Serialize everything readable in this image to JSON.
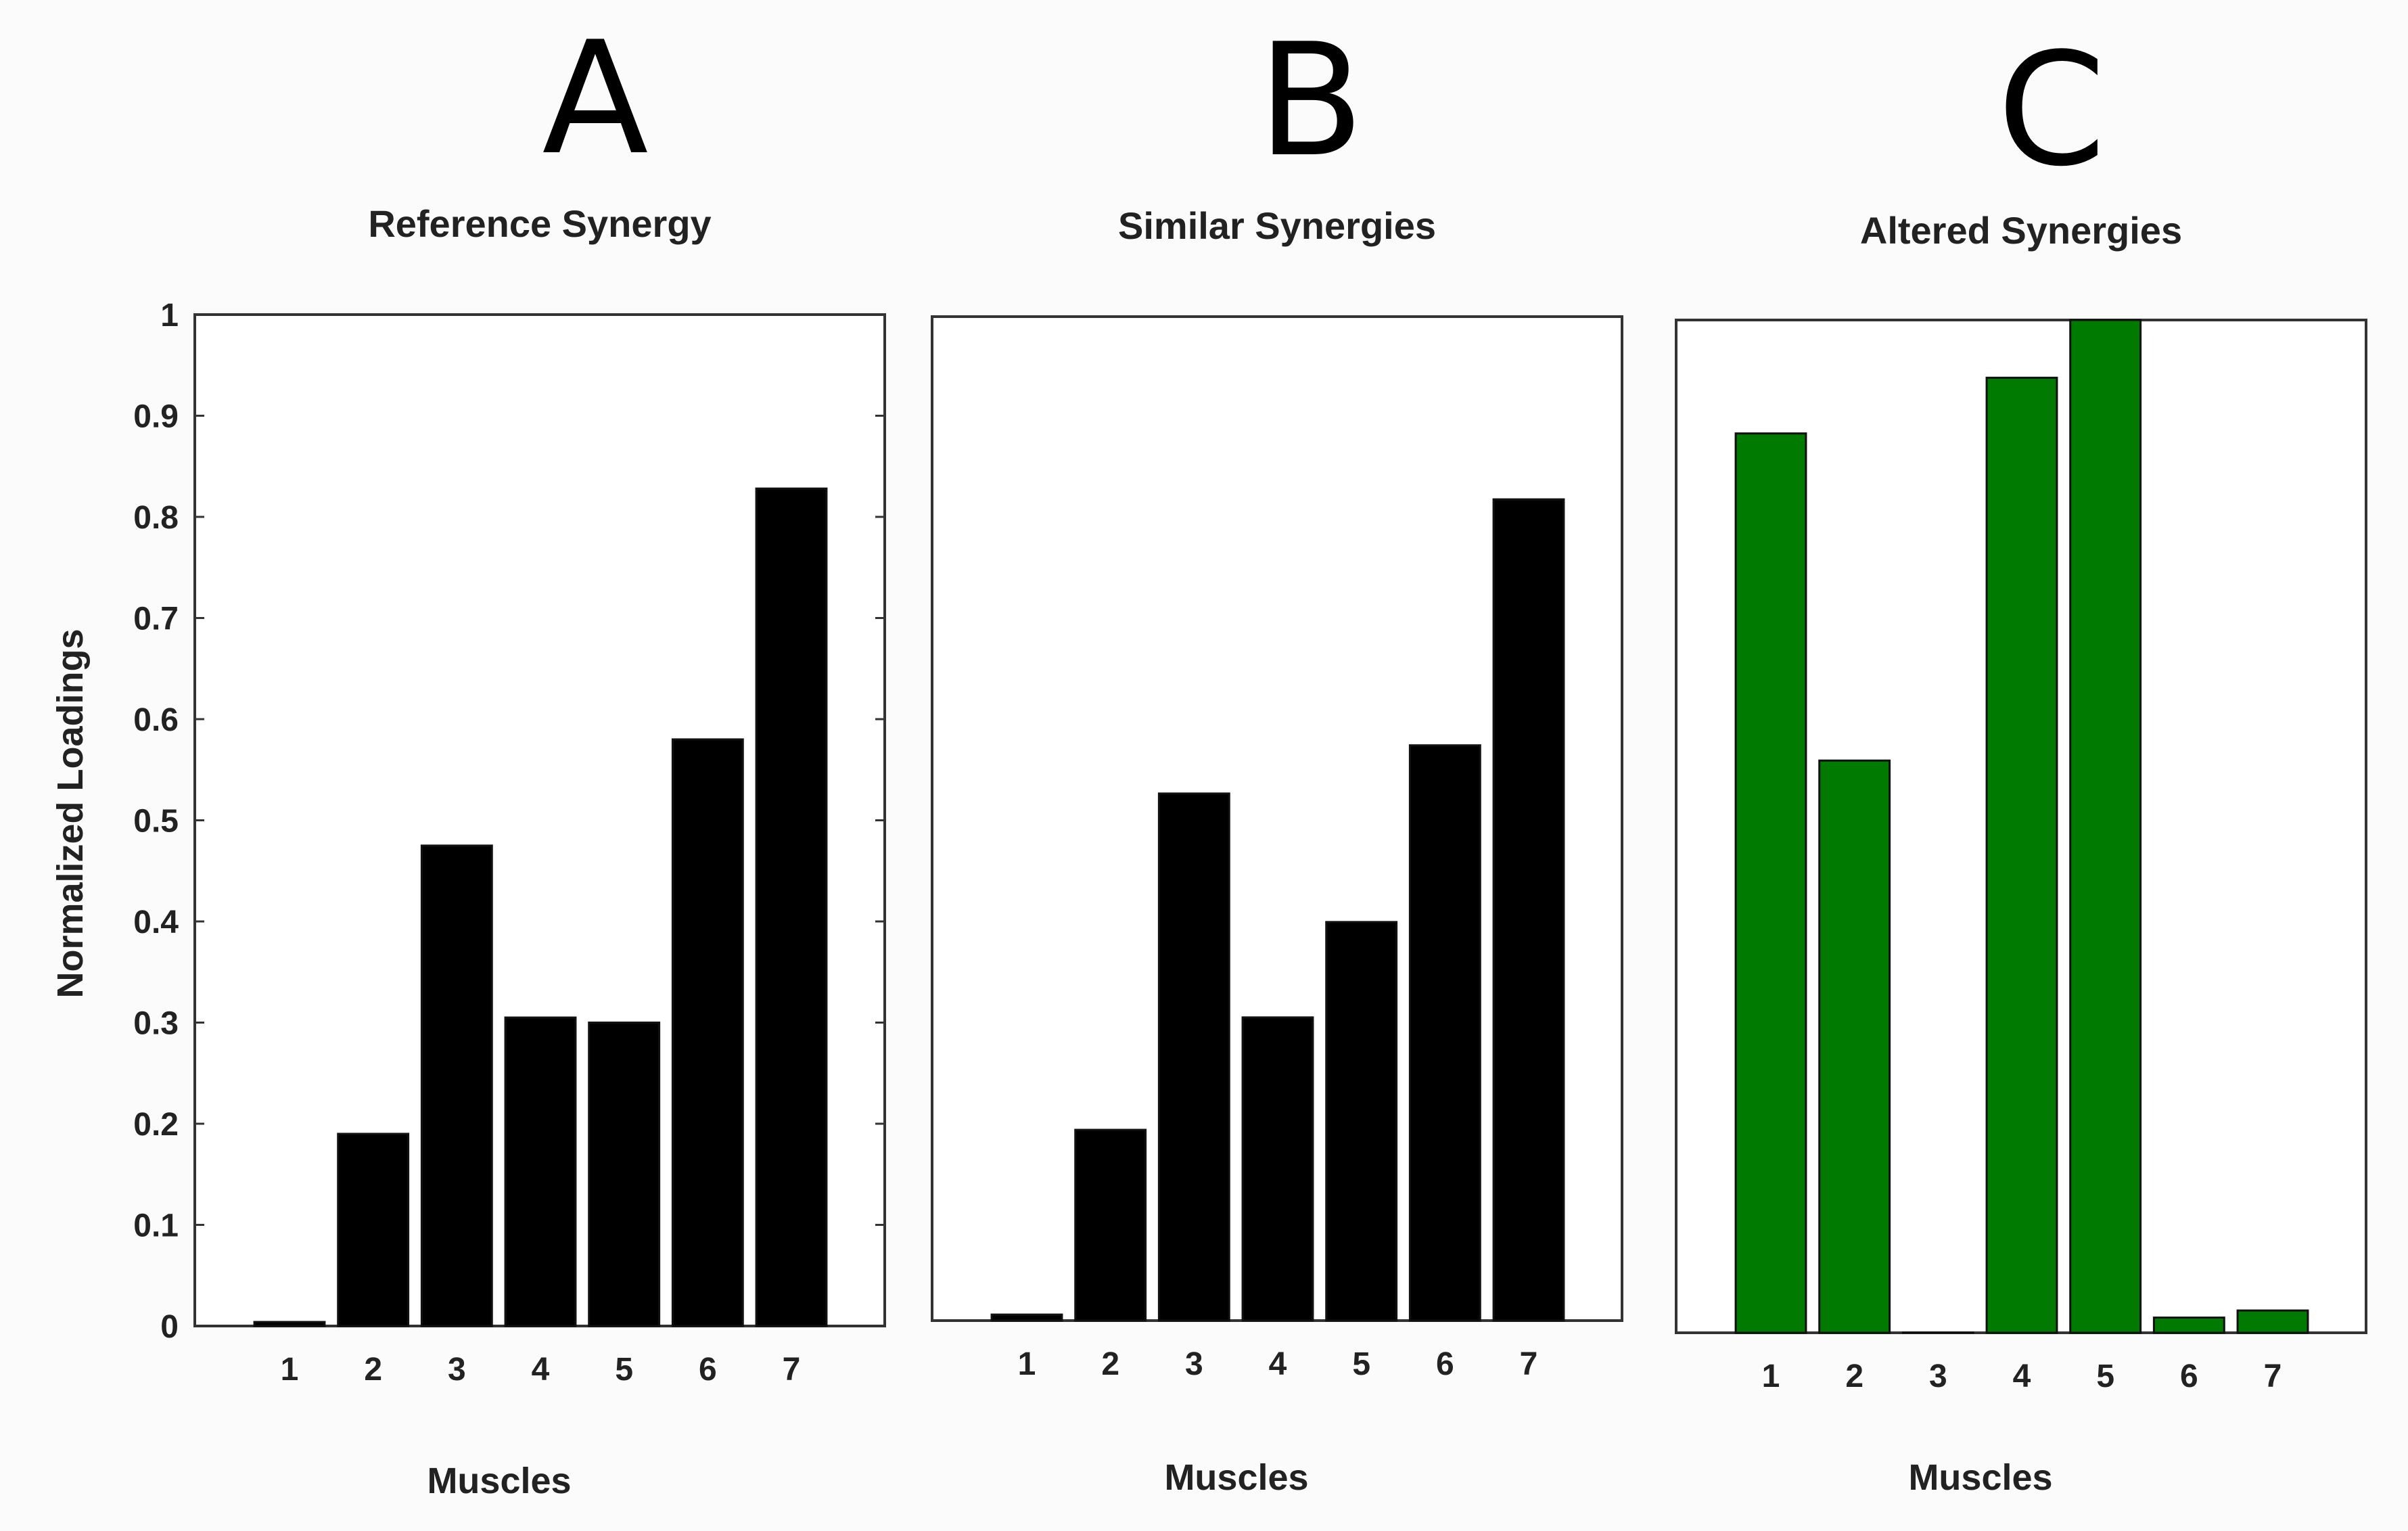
{
  "chart_data": [
    {
      "type": "bar",
      "panel_letter": "A",
      "title": "Reference Synergy",
      "xlabel": "Muscles",
      "ylabel": "Normalized Loadings",
      "categories": [
        "1",
        "2",
        "3",
        "4",
        "5",
        "6",
        "7"
      ],
      "values": [
        0.004,
        0.19,
        0.475,
        0.305,
        0.3,
        0.58,
        0.828
      ],
      "ylim": [
        0,
        1
      ],
      "yticks": [
        "0",
        "0.1",
        "0.2",
        "0.3",
        "0.4",
        "0.5",
        "0.6",
        "0.7",
        "0.8",
        "0.9",
        "1"
      ],
      "show_yticks": true,
      "bar_color": "#000000",
      "grid": false
    },
    {
      "type": "bar",
      "panel_letter": "B",
      "title": "Similar Synergies",
      "xlabel": "Muscles",
      "ylabel": "",
      "categories": [
        "1",
        "2",
        "3",
        "4",
        "5",
        "6",
        "7"
      ],
      "values": [
        0.006,
        0.19,
        0.525,
        0.302,
        0.397,
        0.573,
        0.818
      ],
      "ylim": [
        0,
        1
      ],
      "yticks": [],
      "show_yticks": false,
      "bar_color": "#000000",
      "grid": false
    },
    {
      "type": "bar",
      "panel_letter": "C",
      "title": "Altered Synergies",
      "xlabel": "Muscles",
      "ylabel": "",
      "categories": [
        "1",
        "2",
        "3",
        "4",
        "5",
        "6",
        "7"
      ],
      "values": [
        0.888,
        0.565,
        0.0,
        0.943,
        1.0,
        0.015,
        0.022
      ],
      "ylim": [
        0,
        1
      ],
      "yticks": [],
      "show_yticks": false,
      "bar_color": "#007a00",
      "grid": false
    }
  ]
}
